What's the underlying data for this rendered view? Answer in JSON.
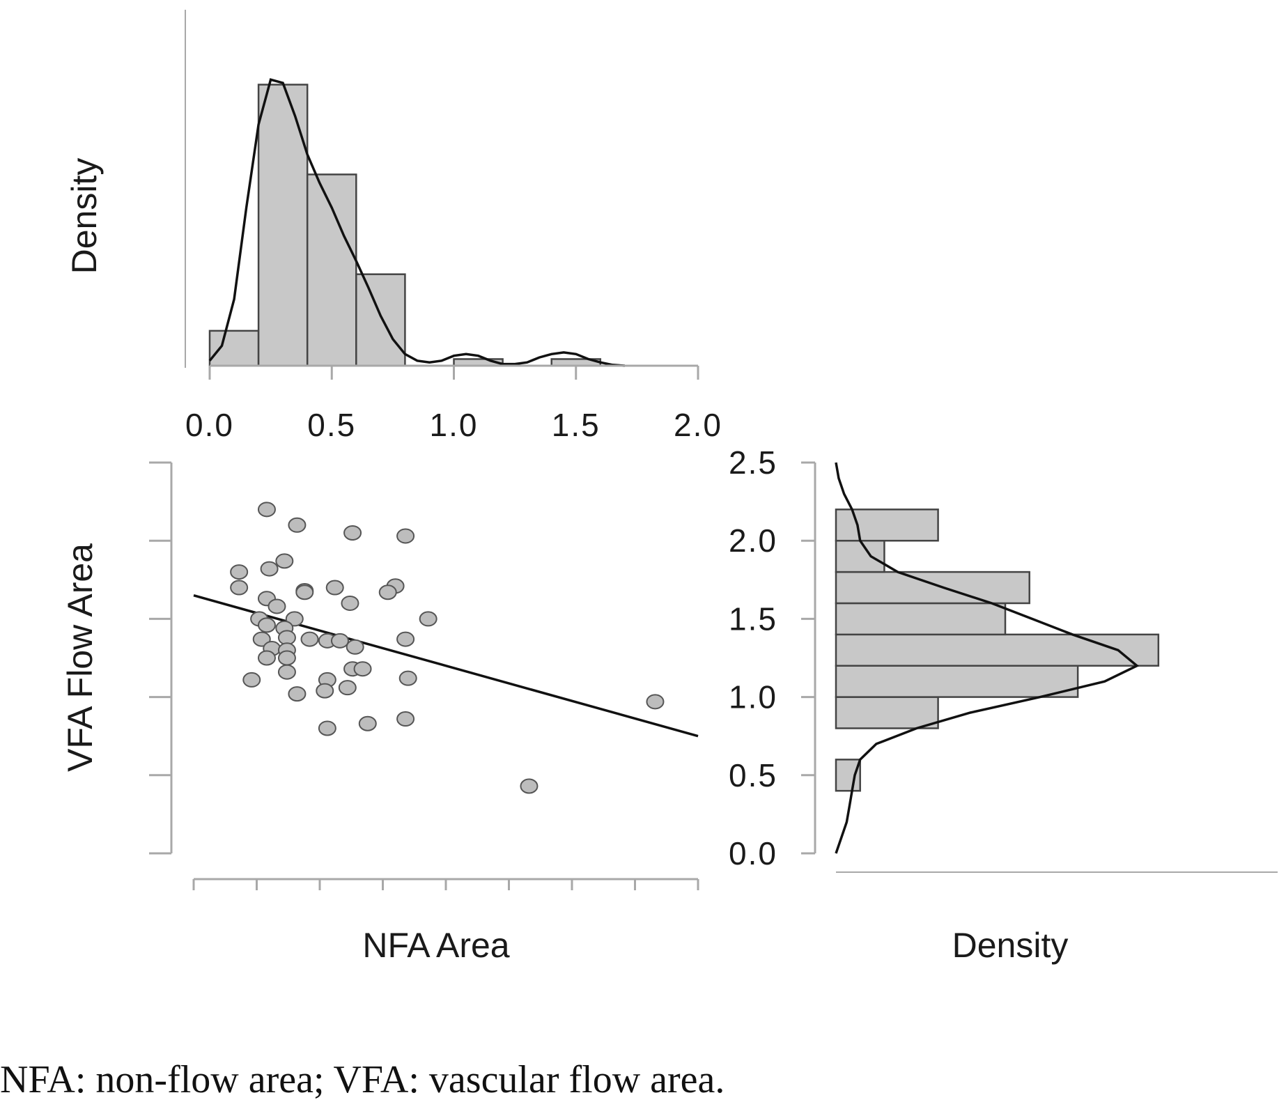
{
  "caption": "NFA: non-flow area; VFA: vascular flow area.",
  "colors": {
    "bar_fill": "#c8c8c8",
    "bar_stroke": "#444444",
    "axis": "#a8a8a8",
    "point_fill": "#bdbdbd",
    "point_stroke": "#555555",
    "curve": "#111111"
  },
  "chart_data": [
    {
      "id": "top_histogram",
      "type": "bar",
      "title": "",
      "xlabel": "",
      "ylabel": "Density",
      "xlim": [
        0,
        2.0
      ],
      "xticks": [
        "0.0",
        "0.5",
        "1.0",
        "1.5",
        "2.0"
      ],
      "xtick_values": [
        0,
        0.5,
        1.0,
        1.5,
        2.0
      ],
      "bins": [
        {
          "start": 0.0,
          "end": 0.2,
          "density": 0.21
        },
        {
          "start": 0.2,
          "end": 0.4,
          "density": 1.69
        },
        {
          "start": 0.4,
          "end": 0.6,
          "density": 1.15
        },
        {
          "start": 0.6,
          "end": 0.8,
          "density": 0.55
        },
        {
          "start": 0.8,
          "end": 1.0,
          "density": 0.0
        },
        {
          "start": 1.0,
          "end": 1.2,
          "density": 0.04
        },
        {
          "start": 1.2,
          "end": 1.4,
          "density": 0.0
        },
        {
          "start": 1.4,
          "end": 1.6,
          "density": 0.04
        }
      ],
      "density_curve": {
        "x": [
          0.0,
          0.05,
          0.1,
          0.15,
          0.2,
          0.25,
          0.3,
          0.35,
          0.4,
          0.45,
          0.5,
          0.55,
          0.6,
          0.65,
          0.7,
          0.75,
          0.8,
          0.85,
          0.9,
          0.95,
          1.0,
          1.05,
          1.1,
          1.15,
          1.2,
          1.25,
          1.3,
          1.35,
          1.4,
          1.45,
          1.5,
          1.55,
          1.6,
          1.65,
          1.7
        ],
        "y": [
          0.03,
          0.12,
          0.4,
          0.95,
          1.45,
          1.72,
          1.7,
          1.5,
          1.27,
          1.1,
          0.95,
          0.78,
          0.63,
          0.47,
          0.3,
          0.16,
          0.07,
          0.03,
          0.02,
          0.03,
          0.06,
          0.07,
          0.06,
          0.03,
          0.01,
          0.01,
          0.02,
          0.05,
          0.07,
          0.08,
          0.07,
          0.04,
          0.02,
          0.005,
          0.0
        ]
      },
      "ylim": [
        0,
        1.78
      ]
    },
    {
      "id": "scatter",
      "type": "scatter",
      "title": "",
      "xlabel": "NFA Area",
      "ylabel": "VFA Flow Area",
      "xlim": [
        0,
        2.0
      ],
      "ylim": [
        0,
        2.5
      ],
      "points": [
        {
          "x": 0.29,
          "y": 2.2
        },
        {
          "x": 0.41,
          "y": 2.1
        },
        {
          "x": 0.63,
          "y": 2.05
        },
        {
          "x": 0.84,
          "y": 2.03
        },
        {
          "x": 0.36,
          "y": 1.87
        },
        {
          "x": 0.3,
          "y": 1.82
        },
        {
          "x": 0.18,
          "y": 1.8
        },
        {
          "x": 0.18,
          "y": 1.7
        },
        {
          "x": 0.44,
          "y": 1.68
        },
        {
          "x": 0.44,
          "y": 1.67
        },
        {
          "x": 0.56,
          "y": 1.7
        },
        {
          "x": 0.8,
          "y": 1.71
        },
        {
          "x": 0.77,
          "y": 1.67
        },
        {
          "x": 0.29,
          "y": 1.63
        },
        {
          "x": 0.33,
          "y": 1.58
        },
        {
          "x": 0.62,
          "y": 1.6
        },
        {
          "x": 0.26,
          "y": 1.5
        },
        {
          "x": 0.4,
          "y": 1.5
        },
        {
          "x": 0.29,
          "y": 1.46
        },
        {
          "x": 0.36,
          "y": 1.44
        },
        {
          "x": 0.27,
          "y": 1.37
        },
        {
          "x": 0.37,
          "y": 1.38
        },
        {
          "x": 0.46,
          "y": 1.37
        },
        {
          "x": 0.53,
          "y": 1.36
        },
        {
          "x": 0.58,
          "y": 1.36
        },
        {
          "x": 0.84,
          "y": 1.37
        },
        {
          "x": 0.93,
          "y": 1.5
        },
        {
          "x": 0.31,
          "y": 1.31
        },
        {
          "x": 0.37,
          "y": 1.3
        },
        {
          "x": 0.64,
          "y": 1.32
        },
        {
          "x": 0.29,
          "y": 1.25
        },
        {
          "x": 0.37,
          "y": 1.25
        },
        {
          "x": 0.63,
          "y": 1.18
        },
        {
          "x": 0.67,
          "y": 1.18
        },
        {
          "x": 0.37,
          "y": 1.16
        },
        {
          "x": 0.23,
          "y": 1.11
        },
        {
          "x": 0.53,
          "y": 1.11
        },
        {
          "x": 0.61,
          "y": 1.06
        },
        {
          "x": 0.85,
          "y": 1.12
        },
        {
          "x": 0.52,
          "y": 1.04
        },
        {
          "x": 0.41,
          "y": 1.02
        },
        {
          "x": 1.83,
          "y": 0.97
        },
        {
          "x": 0.84,
          "y": 0.86
        },
        {
          "x": 0.69,
          "y": 0.83
        },
        {
          "x": 0.53,
          "y": 0.8
        },
        {
          "x": 1.33,
          "y": 0.43
        }
      ],
      "regression_line": {
        "x": [
          0.0,
          2.0
        ],
        "y": [
          1.65,
          0.75
        ]
      }
    },
    {
      "id": "right_histogram",
      "type": "bar",
      "orientation": "horizontal",
      "title": "",
      "xlabel": "Density",
      "ylabel": "",
      "ylim": [
        0,
        2.5
      ],
      "yticks": [
        "0.0",
        "0.5",
        "1.0",
        "1.5",
        "2.0",
        "2.5"
      ],
      "ytick_values": [
        0,
        0.5,
        1.0,
        1.5,
        2.0,
        2.5
      ],
      "bins": [
        {
          "start": 0.4,
          "end": 0.6,
          "density": 0.09
        },
        {
          "start": 0.6,
          "end": 0.8,
          "density": 0.0
        },
        {
          "start": 0.8,
          "end": 1.0,
          "density": 0.38
        },
        {
          "start": 1.0,
          "end": 1.2,
          "density": 0.9
        },
        {
          "start": 1.2,
          "end": 1.4,
          "density": 1.2
        },
        {
          "start": 1.4,
          "end": 1.6,
          "density": 0.63
        },
        {
          "start": 1.6,
          "end": 1.8,
          "density": 0.72
        },
        {
          "start": 1.8,
          "end": 2.0,
          "density": 0.18
        },
        {
          "start": 2.0,
          "end": 2.2,
          "density": 0.38
        }
      ],
      "density_curve": {
        "y": [
          0.0,
          0.1,
          0.2,
          0.3,
          0.4,
          0.5,
          0.6,
          0.7,
          0.8,
          0.9,
          1.0,
          1.1,
          1.2,
          1.3,
          1.4,
          1.5,
          1.6,
          1.7,
          1.8,
          1.9,
          2.0,
          2.1,
          2.2,
          2.3,
          2.4,
          2.5
        ],
        "x": [
          0.0,
          0.02,
          0.04,
          0.05,
          0.06,
          0.07,
          0.09,
          0.15,
          0.3,
          0.5,
          0.76,
          1.0,
          1.12,
          1.05,
          0.88,
          0.73,
          0.58,
          0.4,
          0.23,
          0.13,
          0.09,
          0.08,
          0.06,
          0.03,
          0.01,
          0.0
        ]
      },
      "xlim": [
        0,
        1.4
      ]
    }
  ]
}
